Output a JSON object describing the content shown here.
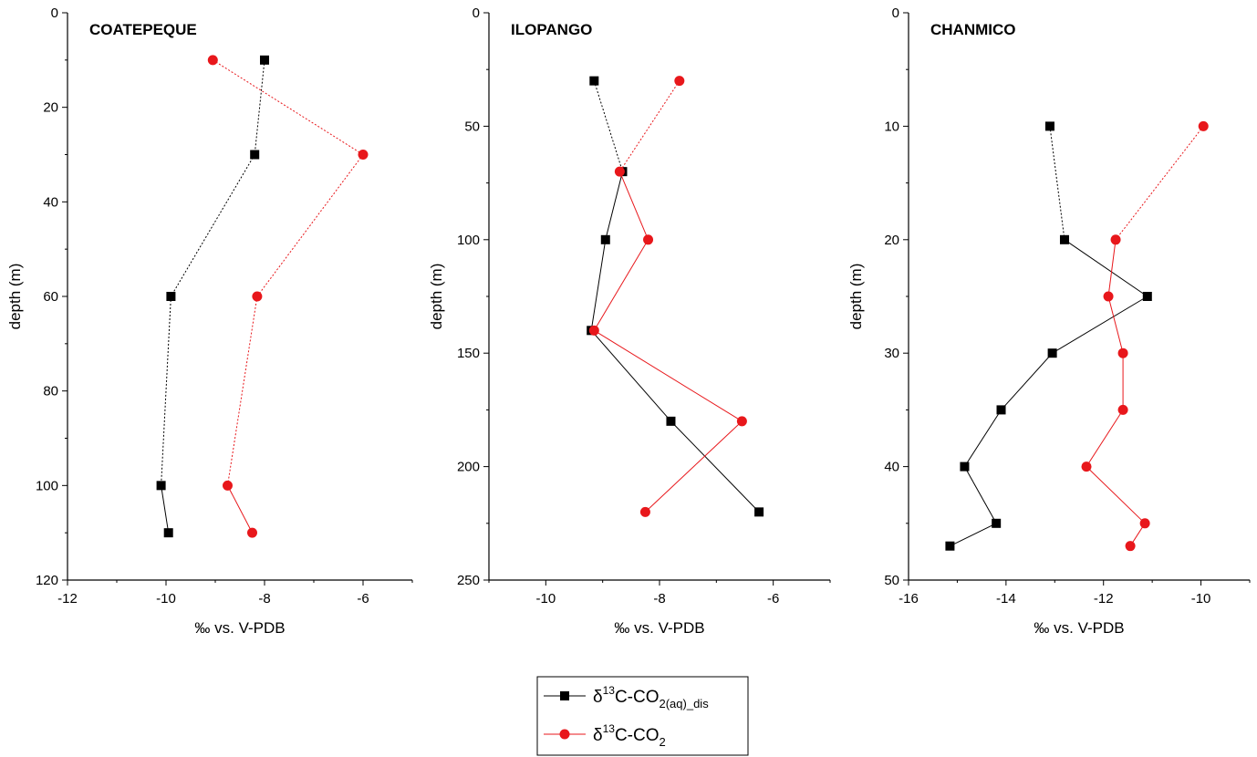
{
  "legend": {
    "entries": [
      {
        "delta": "δ",
        "sup": "13",
        "base": "C-CO",
        "sub": "2(aq)_dis",
        "color": "#000000",
        "marker": "square"
      },
      {
        "delta": "δ",
        "sup": "13",
        "base": "C-CO",
        "sub": "2",
        "color": "#e8171b",
        "marker": "circle"
      }
    ]
  },
  "chart_data": [
    {
      "type": "line",
      "title": "COATEPEQUE",
      "xlabel": "‰ vs. V-PDB",
      "ylabel": "depth (m)",
      "xlim": [
        -12,
        -5
      ],
      "ylim": [
        0,
        120
      ],
      "y_inverted": true,
      "xticks": [
        -12,
        -10,
        -8,
        -6
      ],
      "yticks": [
        0,
        20,
        40,
        60,
        80,
        100,
        120
      ],
      "series": [
        {
          "name": "δ13C-CO2(aq)_dis",
          "color": "#000000",
          "marker": "square",
          "points": [
            [
              -8.0,
              10
            ],
            [
              -8.2,
              30
            ],
            [
              -9.9,
              60
            ],
            [
              -10.1,
              100
            ],
            [
              -9.95,
              110
            ]
          ],
          "dashed": [
            true,
            true,
            true,
            false
          ]
        },
        {
          "name": "δ13C-CO2",
          "color": "#e8171b",
          "marker": "circle",
          "points": [
            [
              -9.05,
              10
            ],
            [
              -6.0,
              30
            ],
            [
              -8.15,
              60
            ],
            [
              -8.75,
              100
            ],
            [
              -8.25,
              110
            ]
          ],
          "dashed": [
            true,
            true,
            true,
            false
          ]
        }
      ]
    },
    {
      "type": "line",
      "title": "ILOPANGO",
      "xlabel": "‰ vs. V-PDB",
      "ylabel": "depth (m)",
      "xlim": [
        -11,
        -5
      ],
      "ylim": [
        0,
        250
      ],
      "y_inverted": true,
      "xticks": [
        -10,
        -8,
        -6
      ],
      "yticks": [
        0,
        50,
        100,
        150,
        200,
        250
      ],
      "series": [
        {
          "name": "δ13C-CO2(aq)_dis",
          "color": "#000000",
          "marker": "square",
          "points": [
            [
              -9.15,
              30
            ],
            [
              -8.65,
              70
            ],
            [
              -8.95,
              100
            ],
            [
              -9.2,
              140
            ],
            [
              -7.8,
              180
            ],
            [
              -6.25,
              220
            ]
          ],
          "dashed": [
            true,
            false,
            false,
            false,
            false
          ]
        },
        {
          "name": "δ13C-CO2",
          "color": "#e8171b",
          "marker": "circle",
          "points": [
            [
              -7.65,
              30
            ],
            [
              -8.7,
              70
            ],
            [
              -8.2,
              100
            ],
            [
              -9.15,
              140
            ],
            [
              -6.55,
              180
            ],
            [
              -8.25,
              220
            ]
          ],
          "dashed": [
            true,
            false,
            false,
            false,
            false
          ]
        }
      ]
    },
    {
      "type": "line",
      "title": "CHANMICO",
      "xlabel": "‰ vs. V-PDB",
      "ylabel": "depth (m)",
      "xlim": [
        -16,
        -9
      ],
      "ylim": [
        0,
        50
      ],
      "y_inverted": true,
      "xticks": [
        -16,
        -14,
        -12,
        -10
      ],
      "yticks": [
        0,
        10,
        20,
        30,
        40,
        50
      ],
      "series": [
        {
          "name": "δ13C-CO2(aq)_dis",
          "color": "#000000",
          "marker": "square",
          "points": [
            [
              -13.1,
              10
            ],
            [
              -12.8,
              20
            ],
            [
              -11.1,
              25
            ],
            [
              -13.05,
              30
            ],
            [
              -14.1,
              35
            ],
            [
              -14.85,
              40
            ],
            [
              -14.2,
              45
            ],
            [
              -15.15,
              47
            ]
          ],
          "dashed": [
            true,
            false,
            false,
            false,
            false,
            false,
            false
          ]
        },
        {
          "name": "δ13C-CO2",
          "color": "#e8171b",
          "marker": "circle",
          "points": [
            [
              -9.95,
              10
            ],
            [
              -11.75,
              20
            ],
            [
              -11.9,
              25
            ],
            [
              -11.6,
              30
            ],
            [
              -11.6,
              35
            ],
            [
              -12.35,
              40
            ],
            [
              -11.15,
              45
            ],
            [
              -11.45,
              47
            ]
          ],
          "dashed": [
            true,
            false,
            false,
            false,
            false,
            false,
            false
          ]
        }
      ]
    }
  ]
}
